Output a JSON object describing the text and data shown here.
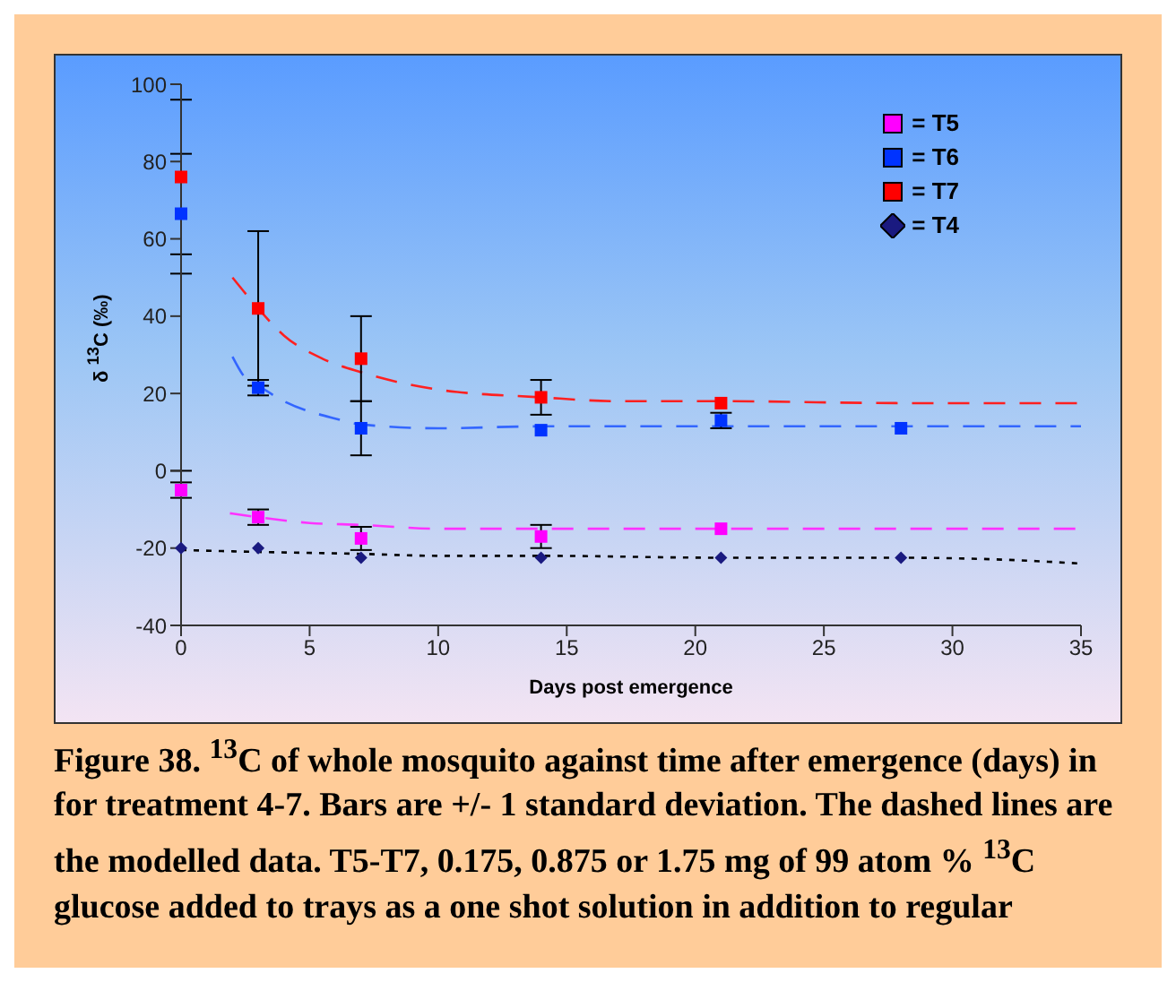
{
  "chart_data": {
    "type": "scatter",
    "title": "Figure 38. $^{13}$C of whole mosquito against time after emergence (days) in for treatment 4-7. Bars are +/- 1 standard deviation. The dashed lines are the modelled data. T5-T7, 0.175, 0.875 or 1.75 mg of 99 atom % $^{13}$C glucose added to trays as a one shot solution in addition to regular",
    "xlabel": "Days post emergence",
    "ylabel": "δ $^{13}$C (‰)",
    "xlim": [
      0,
      35
    ],
    "xticks": [
      0,
      5,
      10,
      15,
      20,
      25,
      30,
      35
    ],
    "ylim": [
      -40,
      100
    ],
    "yticks": [
      -40,
      -20,
      0,
      20,
      40,
      60,
      80,
      100
    ],
    "legend": "top right",
    "series": [
      {
        "type": "line",
        "line_style": "dashed",
        "color": "#ff2020",
        "x": [
          2,
          3,
          4,
          5.5,
          7,
          10,
          14,
          17,
          21,
          28,
          35
        ],
        "values": [
          50,
          42,
          35,
          29,
          25.5,
          21,
          19,
          18,
          18,
          17.5,
          17.5
        ]
      },
      {
        "type": "line",
        "line_style": "dashed",
        "color": "#3366ff",
        "x": [
          2,
          2.5,
          3,
          4,
          6,
          7,
          10,
          14,
          21,
          28,
          35
        ],
        "values": [
          29.5,
          24,
          22,
          18,
          13.5,
          12,
          11,
          11.5,
          11.5,
          11.5,
          11.5
        ]
      },
      {
        "type": "line",
        "line_style": "dashed",
        "color": "#ff33ff",
        "x": [
          1.9,
          3,
          5,
          7,
          10,
          14,
          21,
          28,
          35
        ],
        "values": [
          -11,
          -12,
          -13.5,
          -14,
          -15,
          -15,
          -15,
          -15,
          -15
        ]
      },
      {
        "type": "line",
        "line_style": "dotted",
        "color": "#000000",
        "x": [
          0,
          3,
          7,
          10,
          14,
          21,
          28,
          32,
          35
        ],
        "values": [
          -20.5,
          -21,
          -21.5,
          -22,
          -22,
          -22.5,
          -22.5,
          -23,
          -24
        ]
      },
      {
        "name": "= T5",
        "marker": "square",
        "color": "#ff00ff",
        "x": [
          0,
          3,
          7,
          14,
          21
        ],
        "values": [
          -5,
          -12,
          -17.5,
          -17,
          -15
        ],
        "errors": [
          2,
          2,
          3,
          3,
          null
        ]
      },
      {
        "name": "= T6",
        "marker": "square",
        "color": "#0033ff",
        "x": [
          0,
          3,
          7,
          14,
          21,
          28
        ],
        "values": [
          66.5,
          21.5,
          11,
          10.5,
          13,
          11
        ],
        "errors": [
          15.5,
          2,
          7,
          null,
          2,
          null
        ]
      },
      {
        "name": "= T7",
        "marker": "square",
        "color": "#ff0000",
        "x": [
          0,
          3,
          7,
          14,
          21
        ],
        "values": [
          76,
          42,
          29,
          19,
          17.5
        ],
        "errors": [
          20,
          20,
          11,
          4.5,
          null
        ]
      },
      {
        "name": "= T4",
        "marker": "diamond",
        "color": "#1a1a80",
        "x": [
          0,
          3,
          7,
          14,
          21,
          28
        ],
        "values": [
          -20,
          -20,
          -22.5,
          -22.5,
          -22.5,
          -22.5
        ],
        "errors": [
          20,
          null,
          null,
          null,
          null,
          null
        ]
      }
    ]
  }
}
